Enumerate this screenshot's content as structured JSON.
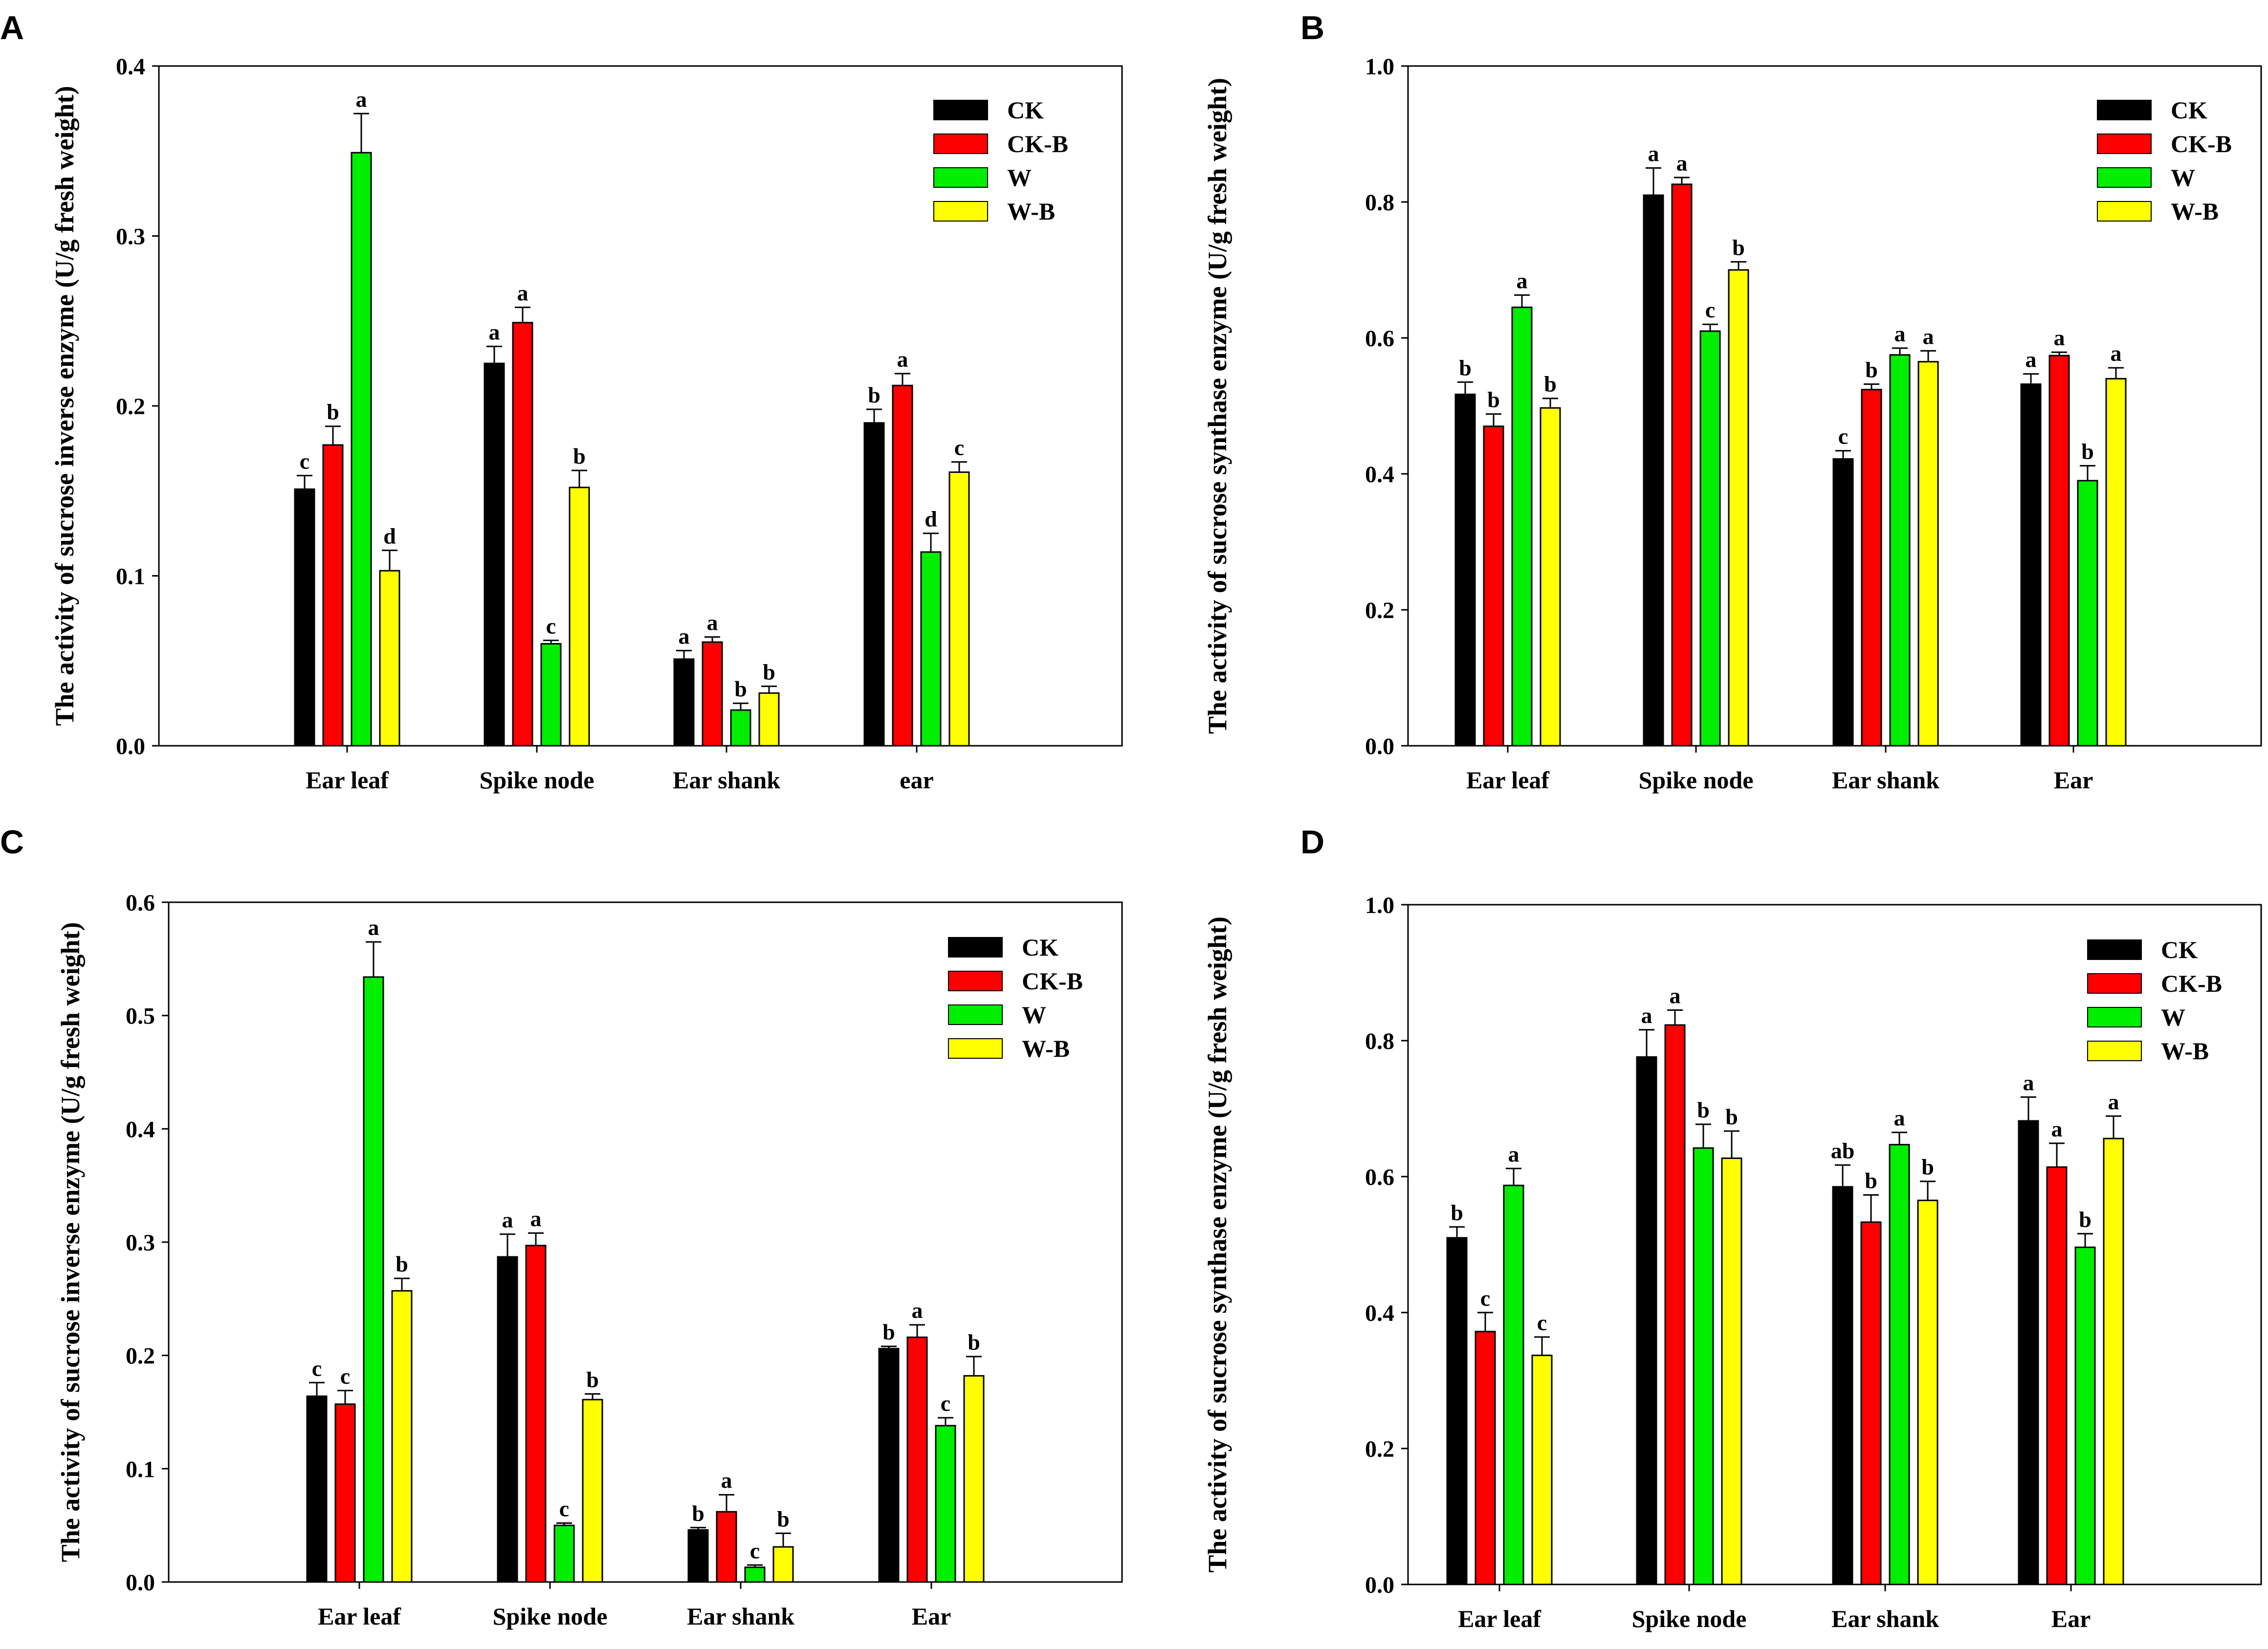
{
  "colors": {
    "CK": "#000000",
    "CK-B": "#ff0000",
    "W": "#00ee00",
    "W-B": "#ffff00",
    "axis": "#000000"
  },
  "chart_data": [
    {
      "panel": "A",
      "type": "bar",
      "ylabel": "The activity of sucrose inverse enzyme (U/g fresh weight)",
      "ylim": [
        0,
        0.4
      ],
      "yticks": [
        "0.0",
        "0.1",
        "0.2",
        "0.3",
        "0.4"
      ],
      "categories": [
        "Ear leaf",
        "Spike node",
        "Ear shank",
        "ear"
      ],
      "legend": [
        "CK",
        "CK-B",
        "W",
        "W-B"
      ],
      "legend_position": "top-right",
      "series": [
        {
          "name": "CK",
          "values": [
            0.151,
            0.225,
            0.051,
            0.19
          ],
          "errors": [
            0.008,
            0.01,
            0.005,
            0.008
          ],
          "letters": [
            "c",
            "a",
            "a",
            "b"
          ]
        },
        {
          "name": "CK-B",
          "values": [
            0.177,
            0.249,
            0.061,
            0.212
          ],
          "errors": [
            0.011,
            0.009,
            0.003,
            0.007
          ],
          "letters": [
            "b",
            "a",
            "a",
            "a"
          ]
        },
        {
          "name": "W",
          "values": [
            0.349,
            0.06,
            0.021,
            0.114
          ],
          "errors": [
            0.023,
            0.002,
            0.004,
            0.011
          ],
          "letters": [
            "a",
            "c",
            "b",
            "d"
          ]
        },
        {
          "name": "W-B",
          "values": [
            0.103,
            0.152,
            0.031,
            0.161
          ],
          "errors": [
            0.012,
            0.01,
            0.004,
            0.006
          ],
          "letters": [
            "d",
            "b",
            "b",
            "c"
          ]
        }
      ]
    },
    {
      "panel": "B",
      "type": "bar",
      "ylabel": "The activity of sucrose synthase enzyme (U/g fresh weight)",
      "ylim": [
        0,
        1.0
      ],
      "yticks": [
        "0.0",
        "0.2",
        "0.4",
        "0.6",
        "0.8",
        "1.0"
      ],
      "categories": [
        "Ear leaf",
        "Spike node",
        "Ear shank",
        "Ear"
      ],
      "legend": [
        "CK",
        "CK-B",
        "W",
        "W-B"
      ],
      "legend_position": "top-right",
      "series": [
        {
          "name": "CK",
          "values": [
            0.517,
            0.81,
            0.422,
            0.532
          ],
          "errors": [
            0.018,
            0.04,
            0.012,
            0.015
          ],
          "letters": [
            "b",
            "a",
            "c",
            "a"
          ]
        },
        {
          "name": "CK-B",
          "values": [
            0.47,
            0.826,
            0.524,
            0.574
          ],
          "errors": [
            0.018,
            0.01,
            0.008,
            0.005
          ],
          "letters": [
            "b",
            "a",
            "b",
            "a"
          ]
        },
        {
          "name": "W",
          "values": [
            0.645,
            0.61,
            0.575,
            0.39
          ],
          "errors": [
            0.018,
            0.01,
            0.01,
            0.022
          ],
          "letters": [
            "a",
            "c",
            "a",
            "b"
          ]
        },
        {
          "name": "W-B",
          "values": [
            0.497,
            0.7,
            0.565,
            0.54
          ],
          "errors": [
            0.014,
            0.012,
            0.016,
            0.016
          ],
          "letters": [
            "b",
            "b",
            "a",
            "a"
          ]
        }
      ]
    },
    {
      "panel": "C",
      "type": "bar",
      "ylabel": "The activity of sucrose inverse enzyme (U/g fresh weight)",
      "ylim": [
        0,
        0.6
      ],
      "yticks": [
        "0.0",
        "0.1",
        "0.2",
        "0.3",
        "0.4",
        "0.5",
        "0.6"
      ],
      "categories": [
        "Ear leaf",
        "Spike node",
        "Ear shank",
        "Ear"
      ],
      "legend": [
        "CK",
        "CK-B",
        "W",
        "W-B"
      ],
      "legend_position": "top-right",
      "series": [
        {
          "name": "CK",
          "values": [
            0.164,
            0.287,
            0.046,
            0.206
          ],
          "errors": [
            0.012,
            0.02,
            0.002,
            0.002
          ],
          "letters": [
            "c",
            "a",
            "b",
            "b"
          ]
        },
        {
          "name": "CK-B",
          "values": [
            0.157,
            0.297,
            0.062,
            0.216
          ],
          "errors": [
            0.012,
            0.011,
            0.015,
            0.011
          ],
          "letters": [
            "c",
            "a",
            "a",
            "a"
          ]
        },
        {
          "name": "W",
          "values": [
            0.534,
            0.05,
            0.013,
            0.138
          ],
          "errors": [
            0.031,
            0.002,
            0.002,
            0.007
          ],
          "letters": [
            "a",
            "c",
            "c",
            "c"
          ]
        },
        {
          "name": "W-B",
          "values": [
            0.257,
            0.161,
            0.031,
            0.182
          ],
          "errors": [
            0.011,
            0.005,
            0.012,
            0.017
          ],
          "letters": [
            "b",
            "b",
            "b",
            "b"
          ]
        }
      ]
    },
    {
      "panel": "D",
      "type": "bar",
      "ylabel": "The activity of sucrose synthase enzyme (U/g fresh weight)",
      "ylim": [
        0,
        1.0
      ],
      "yticks": [
        "0.0",
        "0.2",
        "0.4",
        "0.6",
        "0.8",
        "1.0"
      ],
      "categories": [
        "Ear leaf",
        "Spike node",
        "Ear shank",
        "Ear"
      ],
      "legend": [
        "CK",
        "CK-B",
        "W",
        "W-B"
      ],
      "legend_position": "top-right",
      "series": [
        {
          "name": "CK",
          "values": [
            0.51,
            0.776,
            0.585,
            0.682
          ],
          "errors": [
            0.016,
            0.04,
            0.032,
            0.035
          ],
          "letters": [
            "b",
            "a",
            "ab",
            "a"
          ]
        },
        {
          "name": "CK-B",
          "values": [
            0.372,
            0.823,
            0.533,
            0.614
          ],
          "errors": [
            0.028,
            0.022,
            0.04,
            0.035
          ],
          "letters": [
            "c",
            "a",
            "b",
            "a"
          ]
        },
        {
          "name": "W",
          "values": [
            0.587,
            0.642,
            0.647,
            0.496
          ],
          "errors": [
            0.025,
            0.035,
            0.018,
            0.02
          ],
          "letters": [
            "a",
            "b",
            "a",
            "b"
          ]
        },
        {
          "name": "W-B",
          "values": [
            0.337,
            0.627,
            0.565,
            0.656
          ],
          "errors": [
            0.027,
            0.04,
            0.028,
            0.033
          ],
          "letters": [
            "c",
            "b",
            "b",
            "a"
          ]
        }
      ]
    }
  ]
}
